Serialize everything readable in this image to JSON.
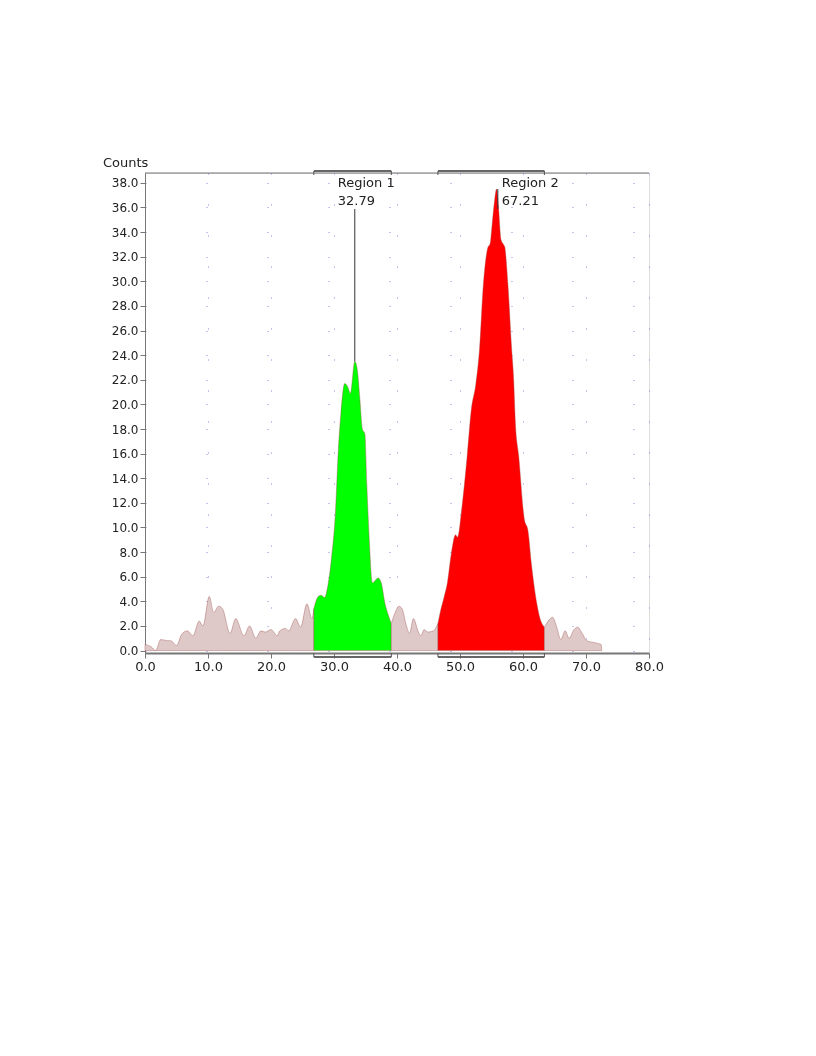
{
  "chart_data": {
    "type": "area",
    "ylabel": "Counts",
    "xlim": [
      0,
      80
    ],
    "ylim": [
      -0.2,
      38.8
    ],
    "xticks": [
      {
        "value": 0,
        "label": "0.0"
      },
      {
        "value": 10,
        "label": "10.0"
      },
      {
        "value": 20,
        "label": "20.0"
      },
      {
        "value": 30,
        "label": "30.0"
      },
      {
        "value": 40,
        "label": "40.0"
      },
      {
        "value": 50,
        "label": "50.0"
      },
      {
        "value": 60,
        "label": "60.0"
      },
      {
        "value": 70,
        "label": "70.0"
      },
      {
        "value": 80,
        "label": "80.0"
      }
    ],
    "yticks": [
      {
        "value": 0,
        "label": "0.0"
      },
      {
        "value": 2,
        "label": "2.0"
      },
      {
        "value": 4,
        "label": "4.0"
      },
      {
        "value": 6,
        "label": "6.0"
      },
      {
        "value": 8,
        "label": "8.0"
      },
      {
        "value": 10,
        "label": "10.0"
      },
      {
        "value": 12,
        "label": "12.0"
      },
      {
        "value": 14,
        "label": "14.0"
      },
      {
        "value": 16,
        "label": "16.0"
      },
      {
        "value": 18,
        "label": "18.0"
      },
      {
        "value": 20,
        "label": "20.0"
      },
      {
        "value": 22,
        "label": "22.0"
      },
      {
        "value": 24,
        "label": "24.0"
      },
      {
        "value": 26,
        "label": "26.0"
      },
      {
        "value": 28,
        "label": "28.0"
      },
      {
        "value": 30,
        "label": "30.0"
      },
      {
        "value": 32,
        "label": "32.0"
      },
      {
        "value": 34,
        "label": "34.0"
      },
      {
        "value": 36,
        "label": "36.0"
      },
      {
        "value": 38,
        "label": "38.0"
      }
    ],
    "grid": true,
    "series": [
      {
        "color": "#dec8c8",
        "x": [
          0,
          1.0,
          1.7,
          2.5,
          3.6,
          4.1,
          5.0,
          5.8,
          6.7,
          7.6,
          8.6,
          9.2,
          10.2,
          10.9,
          11.7,
          12.3,
          13.5,
          14.4,
          15.7,
          16.6,
          17.6,
          18.4,
          19.1,
          20.0,
          21.0,
          21.4,
          22.3,
          22.8,
          23.9,
          24.7,
          25.7,
          26.5,
          26.8
        ],
        "values": [
          0.5,
          0.3,
          0,
          0.9,
          0.8,
          0.8,
          0.4,
          1.3,
          1.6,
          1.2,
          2.4,
          2.0,
          4.4,
          3.1,
          3.6,
          3.4,
          1.4,
          2.6,
          1.2,
          2.0,
          1.0,
          1.6,
          1.5,
          1.7,
          1.2,
          1.6,
          1.8,
          1.6,
          2.6,
          1.9,
          3.8,
          2.6,
          3.4
        ]
      },
      {
        "color": "#00ff00",
        "x": [
          26.8,
          27.5,
          28.0,
          28.5,
          29.0,
          29.6,
          30.2,
          30.7,
          31.1,
          31.7,
          32.2,
          32.6,
          33.3,
          33.7,
          34.1,
          34.5,
          34.9,
          35.2,
          35.6,
          36.1,
          37.0,
          37.5,
          38.1,
          38.6,
          39.1
        ],
        "values": [
          3.4,
          4.4,
          4.5,
          4.3,
          5.2,
          7.5,
          11.0,
          16.4,
          19.3,
          21.7,
          21.4,
          20.9,
          23.5,
          22.8,
          20.5,
          18.0,
          17.6,
          13.6,
          9.0,
          5.5,
          5.9,
          5.5,
          3.8,
          2.9,
          2.2
        ]
      },
      {
        "color": "#dec8c8",
        "x": [
          39.1,
          39.8,
          40.3,
          40.8,
          41.5,
          42.0,
          42.6,
          43.4,
          43.8,
          44.3,
          44.9,
          45.8,
          46.5
        ],
        "values": [
          2.2,
          3.2,
          3.6,
          3.4,
          2.0,
          1.4,
          2.6,
          1.5,
          1.2,
          1.7,
          1.5,
          1.6,
          2.2
        ]
      },
      {
        "color": "#ff0000",
        "x": [
          46.5,
          46.9,
          47.5,
          48.0,
          48.6,
          49.3,
          49.6,
          50.3,
          51.1,
          51.8,
          52.5,
          53.1,
          53.7,
          54.4,
          54.8,
          55.1,
          55.5,
          55.8,
          56.1,
          56.5,
          56.9,
          57.1,
          57.6,
          58.2,
          58.5,
          58.8,
          59.3,
          60.2,
          60.8,
          61.3,
          62.2,
          62.7,
          63.4
        ],
        "values": [
          2.2,
          3.2,
          4.4,
          5.5,
          7.8,
          9.4,
          9.2,
          11.6,
          15.6,
          19.6,
          21.6,
          24.5,
          29.7,
          32.7,
          33.1,
          34.6,
          36.6,
          37.5,
          36.1,
          33.4,
          33.0,
          32.8,
          29.8,
          24.5,
          22.2,
          18.4,
          15.9,
          10.7,
          9.7,
          7.2,
          3.8,
          2.6,
          1.9
        ]
      },
      {
        "color": "#dec8c8",
        "x": [
          63.4,
          64.0,
          64.7,
          65.3,
          66.0,
          66.7,
          67.3,
          68.1,
          68.7,
          69.4,
          70.1,
          70.8,
          71.7,
          72.4,
          72.5
        ],
        "values": [
          1.9,
          2.4,
          2.7,
          2.0,
          0.9,
          1.6,
          1.0,
          1.7,
          1.9,
          1.4,
          0.8,
          0.7,
          0.6,
          0.5,
          0
        ]
      }
    ],
    "annotations": [
      {
        "text": "Region 1\n32.79",
        "x": 33.3,
        "y": 23.5
      },
      {
        "text": "Region 2\n67.21",
        "x": 56.0,
        "y": 37.5
      }
    ]
  }
}
